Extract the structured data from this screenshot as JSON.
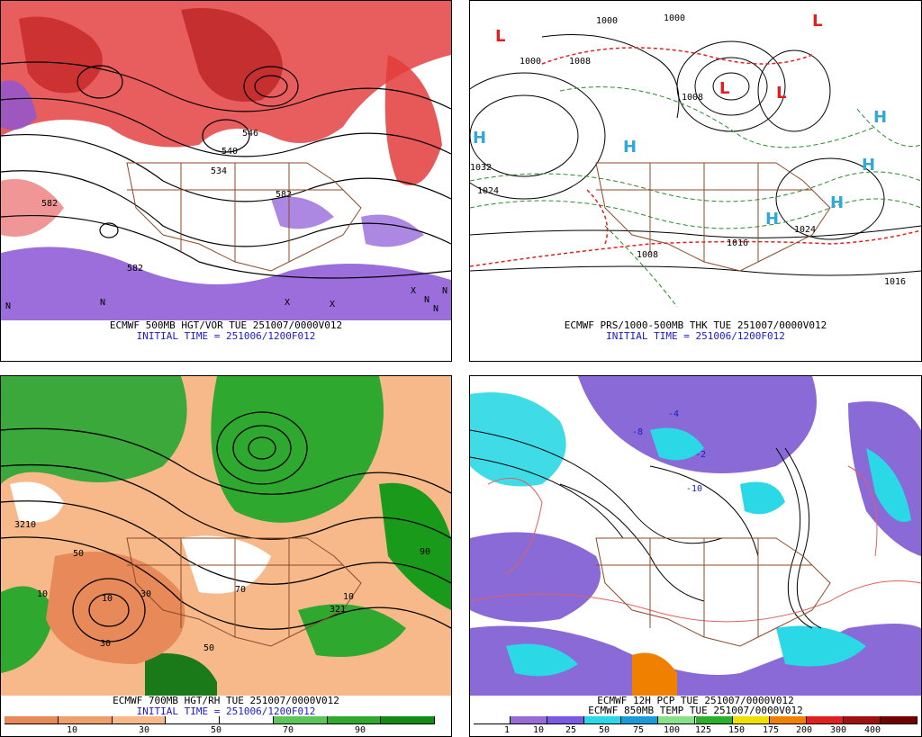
{
  "panels": [
    {
      "id": "500mb",
      "caption_line1": "ECMWF 500MB HGT/VOR TUE 251007/0000V012",
      "caption_line2": "INITIAL TIME = 251006/1200F012",
      "height_labels": [
        "582",
        "582",
        "546",
        "534",
        "540",
        "582"
      ],
      "map_letters": [
        "N",
        "N",
        "X",
        "X",
        "X",
        "N",
        "N",
        "N"
      ]
    },
    {
      "id": "prs-thk",
      "caption_line1": "ECMWF PRS/1000-500MB THK TUE 251007/0000V012",
      "caption_line2": "INITIAL TIME = 251006/1200F012",
      "pressure_labels": [
        "1000",
        "1000",
        "1008",
        "1008",
        "1000",
        "1032",
        "1024",
        "1024",
        "1016",
        "1016",
        "1008"
      ],
      "highs": [
        "H",
        "H",
        "H",
        "H",
        "H",
        "H"
      ],
      "lows": [
        "L",
        "L",
        "L",
        "L"
      ]
    },
    {
      "id": "700mb",
      "caption_line1": "ECMWF 700MB HGT/RH TUE 251007/0000V012",
      "caption_line2": "INITIAL TIME = 251006/1200F012",
      "rh_labels": [
        "3210",
        "10",
        "50",
        "10",
        "30",
        "50",
        "70",
        "321",
        "10",
        "30",
        "90"
      ]
    },
    {
      "id": "pcp",
      "caption_line1": "ECMWF 12H PCP TUE 251007/0000V012",
      "caption_line2": "ECMWF 850MB TEMP TUE 251007/0000V012",
      "temp_labels": [
        "-4",
        "-2",
        "-10",
        "-8"
      ]
    }
  ],
  "colorbar_rh": {
    "colors": [
      "#e8895a",
      "#ef9f6a",
      "#f7b98a",
      "#ffffff",
      "#ffffff",
      "#5cc65c",
      "#2fa82f",
      "#138a13"
    ],
    "labels": [
      "10",
      "30",
      "50",
      "70",
      "90"
    ]
  },
  "colorbar_pcp": {
    "colors": [
      "#ffffff",
      "#9a6ad6",
      "#7a5ae0",
      "#2ad8e6",
      "#1a9ad6",
      "#88e088",
      "#2ab02a",
      "#f0e000",
      "#f08000",
      "#e02020",
      "#a01010",
      "#700000"
    ],
    "labels": [
      "1",
      "10",
      "25",
      "50",
      "75",
      "100",
      "125",
      "150",
      "175",
      "200",
      "300",
      "400"
    ]
  }
}
